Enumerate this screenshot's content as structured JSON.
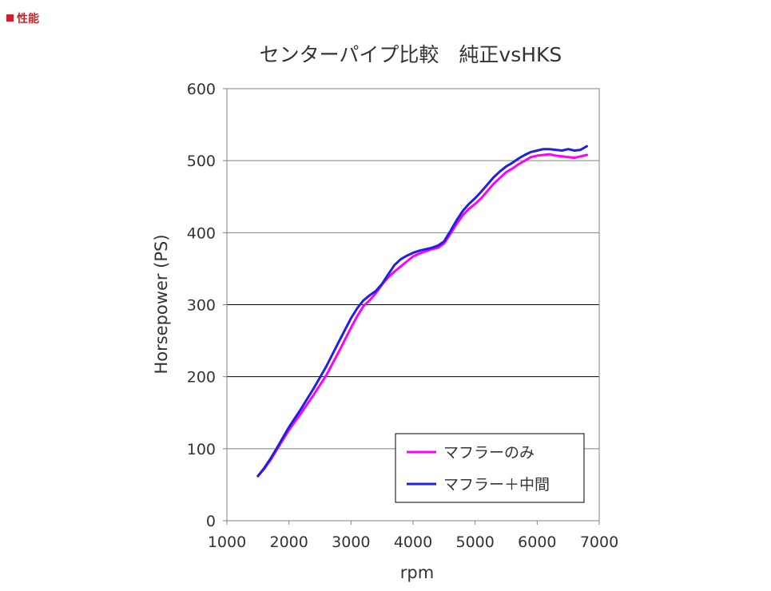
{
  "header": {
    "section_label": "性能"
  },
  "chart_data": {
    "type": "line",
    "title": "センターパイプ比較　純正vsHKS",
    "xlabel": "rpm",
    "ylabel": "Horsepower (PS)",
    "xlim": [
      1000,
      7000
    ],
    "ylim": [
      0,
      600
    ],
    "x_ticks": [
      "1000",
      "2000",
      "3000",
      "4000",
      "5000",
      "6000",
      "7000"
    ],
    "y_ticks": [
      "0",
      "100",
      "200",
      "300",
      "400",
      "500",
      "600"
    ],
    "grid": "horizontal",
    "legend_position": "bottom-right",
    "series": [
      {
        "name": "マフラーのみ",
        "color": "#ff00ff",
        "points": [
          [
            1500,
            62
          ],
          [
            1600,
            72
          ],
          [
            1700,
            84
          ],
          [
            1800,
            98
          ],
          [
            2000,
            126
          ],
          [
            2200,
            150
          ],
          [
            2400,
            175
          ],
          [
            2600,
            202
          ],
          [
            2800,
            234
          ],
          [
            3000,
            268
          ],
          [
            3100,
            284
          ],
          [
            3200,
            298
          ],
          [
            3300,
            306
          ],
          [
            3400,
            316
          ],
          [
            3500,
            328
          ],
          [
            3600,
            338
          ],
          [
            3700,
            346
          ],
          [
            3800,
            353
          ],
          [
            3900,
            360
          ],
          [
            4000,
            367
          ],
          [
            4100,
            371
          ],
          [
            4200,
            374
          ],
          [
            4300,
            377
          ],
          [
            4400,
            379
          ],
          [
            4500,
            385
          ],
          [
            4600,
            398
          ],
          [
            4700,
            412
          ],
          [
            4800,
            424
          ],
          [
            4900,
            433
          ],
          [
            5000,
            440
          ],
          [
            5100,
            448
          ],
          [
            5200,
            458
          ],
          [
            5300,
            468
          ],
          [
            5400,
            476
          ],
          [
            5500,
            484
          ],
          [
            5600,
            489
          ],
          [
            5700,
            495
          ],
          [
            5800,
            500
          ],
          [
            5900,
            505
          ],
          [
            6000,
            507
          ],
          [
            6100,
            508
          ],
          [
            6200,
            509
          ],
          [
            6300,
            507
          ],
          [
            6400,
            506
          ],
          [
            6500,
            505
          ],
          [
            6600,
            504
          ],
          [
            6700,
            506
          ],
          [
            6800,
            508
          ]
        ]
      },
      {
        "name": "マフラー＋中間",
        "color": "#1f1fe0",
        "points": [
          [
            1500,
            62
          ],
          [
            1600,
            73
          ],
          [
            1700,
            86
          ],
          [
            1800,
            100
          ],
          [
            2000,
            130
          ],
          [
            2200,
            156
          ],
          [
            2400,
            184
          ],
          [
            2600,
            214
          ],
          [
            2800,
            248
          ],
          [
            3000,
            281
          ],
          [
            3100,
            295
          ],
          [
            3200,
            306
          ],
          [
            3300,
            313
          ],
          [
            3400,
            319
          ],
          [
            3500,
            329
          ],
          [
            3600,
            342
          ],
          [
            3700,
            355
          ],
          [
            3800,
            363
          ],
          [
            3900,
            368
          ],
          [
            4000,
            372
          ],
          [
            4100,
            375
          ],
          [
            4200,
            377
          ],
          [
            4300,
            379
          ],
          [
            4400,
            382
          ],
          [
            4500,
            388
          ],
          [
            4600,
            402
          ],
          [
            4700,
            417
          ],
          [
            4800,
            430
          ],
          [
            4900,
            440
          ],
          [
            5000,
            448
          ],
          [
            5100,
            457
          ],
          [
            5200,
            467
          ],
          [
            5300,
            477
          ],
          [
            5400,
            485
          ],
          [
            5500,
            492
          ],
          [
            5600,
            497
          ],
          [
            5700,
            503
          ],
          [
            5800,
            508
          ],
          [
            5900,
            512
          ],
          [
            6000,
            514
          ],
          [
            6100,
            516
          ],
          [
            6200,
            516
          ],
          [
            6300,
            515
          ],
          [
            6400,
            514
          ],
          [
            6500,
            516
          ],
          [
            6600,
            514
          ],
          [
            6700,
            515
          ],
          [
            6800,
            520
          ]
        ]
      }
    ]
  }
}
